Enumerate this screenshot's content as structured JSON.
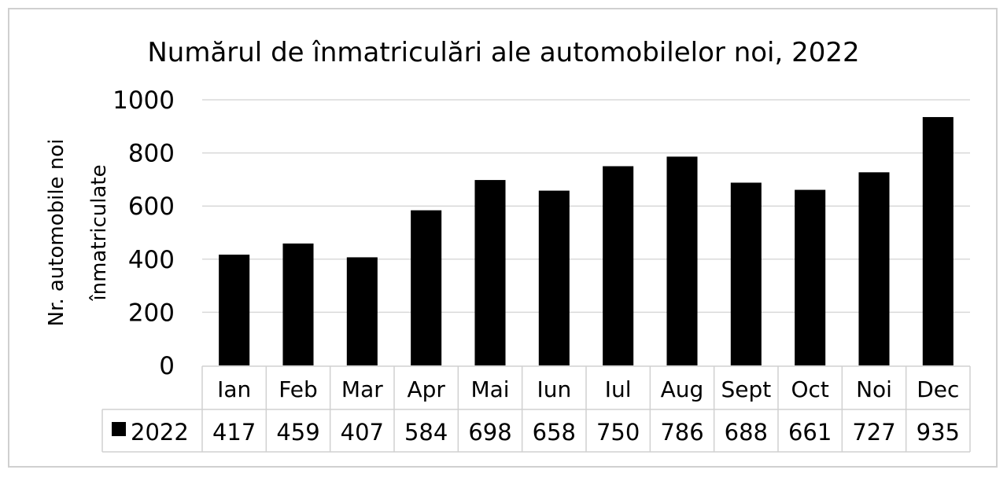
{
  "chart_data": {
    "type": "bar",
    "title": "Numărul de înmatriculări ale automobilelor noi, 2022",
    "ylabel_lines": [
      "Nr. automobile noi",
      "înmatriculate"
    ],
    "categories": [
      "Ian",
      "Feb",
      "Mar",
      "Apr",
      "Mai",
      "Iun",
      "Iul",
      "Aug",
      "Sept",
      "Oct",
      "Noi",
      "Dec"
    ],
    "series": [
      {
        "name": "2022",
        "values": [
          417,
          459,
          407,
          584,
          698,
          658,
          750,
          786,
          688,
          661,
          727,
          935
        ],
        "color": "#000000"
      }
    ],
    "ylim": [
      0,
      1000
    ],
    "yticks": [
      "0",
      "200",
      "400",
      "600",
      "800",
      "1000"
    ],
    "grid": true,
    "legend_placement": "data-table",
    "data_table": true
  }
}
